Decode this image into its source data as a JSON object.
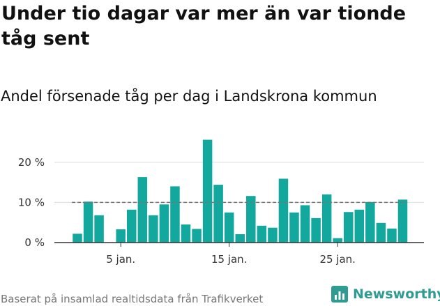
{
  "title": "Under tio dagar var mer än var tionde tåg sent",
  "subtitle": "Andel försenade tåg per dag i Landskrona kommun",
  "footer": "Baserat på insamlad realtidsdata från Trafikverket",
  "logo": {
    "text": "Newsworthy",
    "icon": "newsworthy-logo-icon",
    "color": "#2f9b93"
  },
  "colors": {
    "bar": "#13a89e",
    "grid": "#dddddd",
    "reference": "#777777",
    "axis": "#333333"
  },
  "chart_data": {
    "type": "bar",
    "title": "Andel försenade tåg per dag i Landskrona kommun",
    "xlabel": "",
    "ylabel": "",
    "unit": "%",
    "x_day_start": 1,
    "x_ticks": [
      {
        "day": 5,
        "label": "5 jan."
      },
      {
        "day": 15,
        "label": "15 jan."
      },
      {
        "day": 25,
        "label": "25 jan."
      }
    ],
    "y_ticks": [
      {
        "value": 0,
        "label": "0 %"
      },
      {
        "value": 10,
        "label": "10 %"
      },
      {
        "value": 20,
        "label": "20 %"
      }
    ],
    "ylim": [
      0,
      27
    ],
    "reference_line": 10,
    "grid": true,
    "values": [
      2.2,
      10.2,
      6.8,
      0,
      3.3,
      8.2,
      16.3,
      6.8,
      9.5,
      14.0,
      4.5,
      3.4,
      25.6,
      14.4,
      7.5,
      2.1,
      11.6,
      4.2,
      3.7,
      15.9,
      7.5,
      9.3,
      6.1,
      12.0,
      1.1,
      7.6,
      8.2,
      10.1,
      4.9,
      3.5,
      10.7
    ]
  }
}
